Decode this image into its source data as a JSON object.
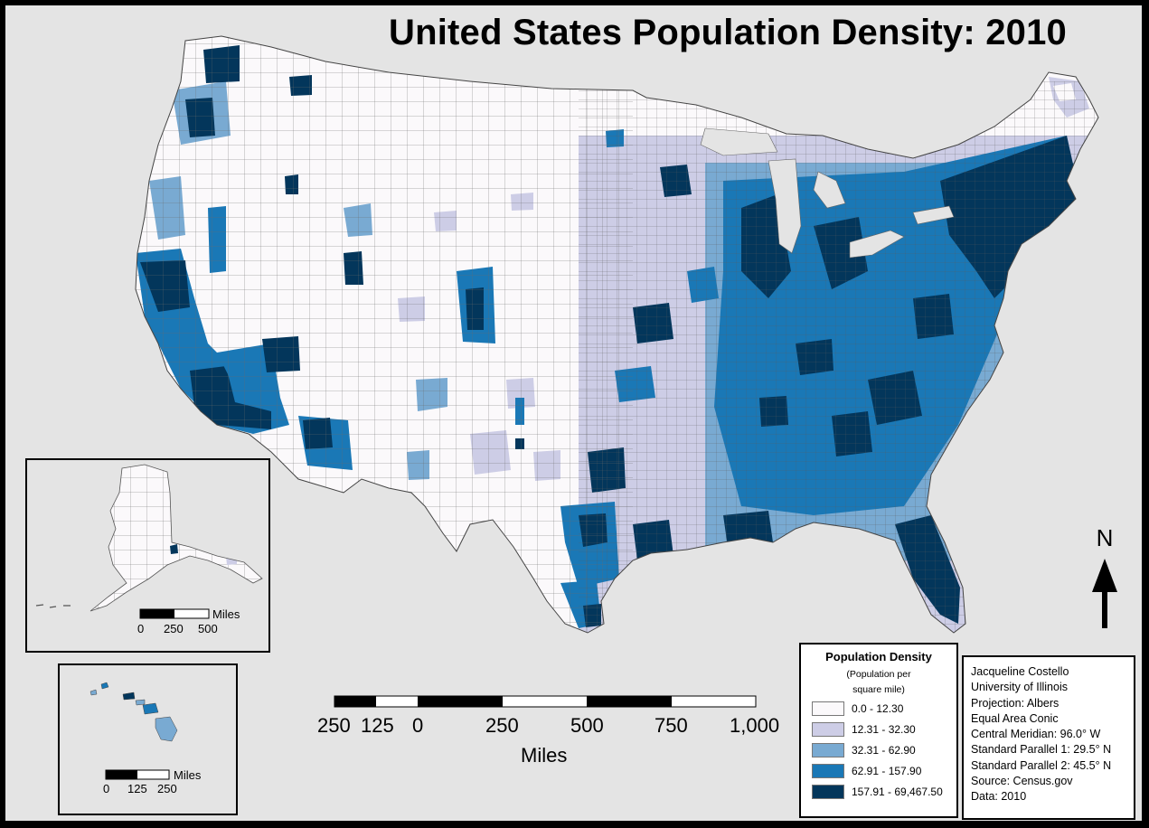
{
  "title": "United States Population Density: 2010",
  "legend": {
    "title": "Population Density",
    "subtitle_line1": "(Population per",
    "subtitle_line2": "square mile)",
    "classes": [
      {
        "label": "0.0 - 12.30",
        "color": "#fbf9fb"
      },
      {
        "label": "12.31 - 32.30",
        "color": "#cdcde6"
      },
      {
        "label": "32.31 - 62.90",
        "color": "#79aad2"
      },
      {
        "label": "62.91 - 157.90",
        "color": "#1a78b6"
      },
      {
        "label": "157.91 - 69,467.50",
        "color": "#03365b"
      }
    ]
  },
  "credits": [
    "Jacqueline Costello",
    "University of Illinois",
    "Projection:  Albers",
    "Equal Area Conic",
    "Central Meridian: 96.0° W",
    "Standard Parallel 1: 29.5° N",
    "Standard Parallel 2: 45.5° N",
    "Source: Census.gov",
    "Data:  2010"
  ],
  "north_arrow": {
    "label": "N"
  },
  "main_scale": {
    "unit": "Miles",
    "labels": [
      "250",
      "125",
      "0",
      "250",
      "500",
      "750",
      "1,000"
    ]
  },
  "alaska_scale": {
    "unit": "Miles",
    "labels": [
      "0",
      "250",
      "500"
    ]
  },
  "hawaii_scale": {
    "unit": "Miles",
    "labels": [
      "0",
      "125",
      "250"
    ]
  }
}
